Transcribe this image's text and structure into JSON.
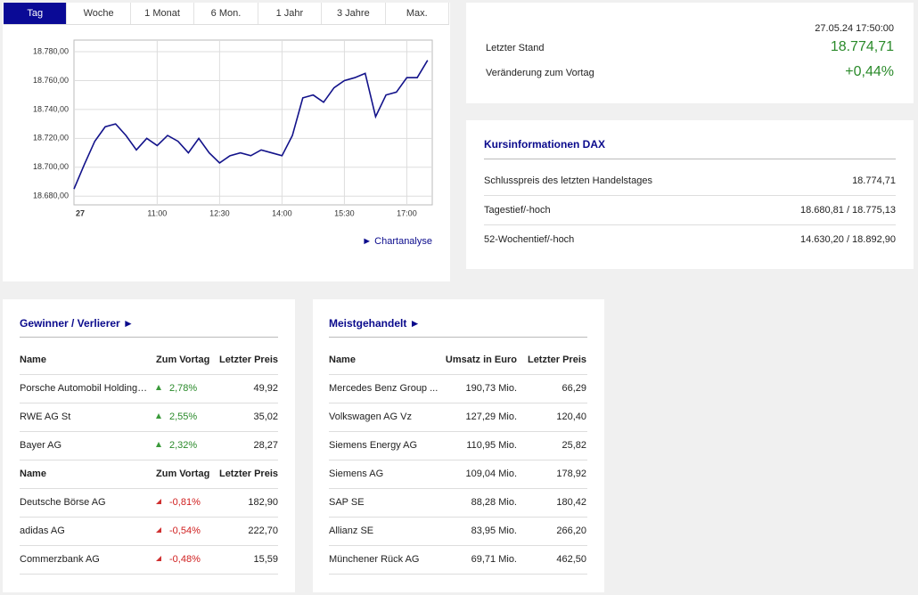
{
  "tabs": {
    "items": [
      "Tag",
      "Woche",
      "1 Monat",
      "6 Mon.",
      "1 Jahr",
      "3 Jahre",
      "Max."
    ],
    "selected": 0
  },
  "chart_data": {
    "type": "line",
    "color": "#12128a",
    "grid": true,
    "categories": [
      "27",
      null,
      null,
      null,
      null,
      null,
      null,
      null,
      "11:00",
      null,
      null,
      null,
      null,
      null,
      "12:30",
      null,
      null,
      null,
      null,
      null,
      "14:00",
      null,
      null,
      null,
      null,
      null,
      "15:30",
      null,
      null,
      null,
      null,
      null,
      "17:00",
      null,
      null
    ],
    "values": [
      18685,
      18702,
      18718,
      18728,
      18730,
      18722,
      18712,
      18720,
      18715,
      18722,
      18718,
      18710,
      18720,
      18710,
      18703,
      18708,
      18710,
      18708,
      18712,
      18710,
      18708,
      18722,
      18748,
      18750,
      18745,
      18755,
      18760,
      18762,
      18765,
      18735,
      18750,
      18752,
      18762,
      18762,
      18774
    ],
    "ylim": [
      18674,
      18788
    ],
    "yticks": [
      {
        "value": 18680,
        "label": "18.680,00"
      },
      {
        "value": 18700,
        "label": "18.700,00"
      },
      {
        "value": 18720,
        "label": "18.720,00"
      },
      {
        "value": 18740,
        "label": "18.740,00"
      },
      {
        "value": 18760,
        "label": "18.760,00"
      },
      {
        "value": 18780,
        "label": "18.780,00"
      }
    ],
    "link": "► Chartanalyse"
  },
  "quote": {
    "timestamp": "27.05.24 17:50:00",
    "rows": [
      {
        "label": "Letzter Stand",
        "value": "18.774,71"
      },
      {
        "label": "Veränderung zum Vortag",
        "value": "+0,44%"
      }
    ]
  },
  "kursinfo": {
    "title": "Kursinformationen DAX",
    "rows": [
      [
        "Schlusspreis des letzten Handelstages",
        "18.774,71"
      ],
      [
        "Tagestief/-hoch",
        "18.680,81 / 18.775,13"
      ],
      [
        "52-Wochentief/-hoch",
        "14.630,20 / 18.892,90"
      ]
    ]
  },
  "movers": {
    "title": "Gewinner / Verlierer ►",
    "groups": [
      {
        "header": [
          "Name",
          "Zum Vortag",
          "Letzter Preis"
        ],
        "rows": [
          [
            "Porsche Automobil Holding…",
            "2,78%",
            "49,92"
          ],
          [
            "RWE AG St",
            "2,55%",
            "35,02"
          ],
          [
            "Bayer AG",
            "2,32%",
            "28,27"
          ]
        ]
      },
      {
        "header": [
          "Name",
          "Zum Vortag",
          "Letzter Preis"
        ],
        "rows": [
          [
            "Deutsche Börse AG",
            "-0,81%",
            "182,90"
          ],
          [
            "adidas AG",
            "-0,54%",
            "222,70"
          ],
          [
            "Commerzbank AG",
            "-0,48%",
            "15,59"
          ]
        ]
      }
    ]
  },
  "active": {
    "title": "Meistgehandelt ►",
    "header": [
      "Name",
      "Umsatz in Euro",
      "Letzter Preis"
    ],
    "rows": [
      [
        "Mercedes Benz Group ...",
        "190,73 Mio.",
        "66,29"
      ],
      [
        "Volkswagen AG Vz",
        "127,29 Mio.",
        "120,40"
      ],
      [
        "Siemens Energy AG",
        "110,95 Mio.",
        "25,82"
      ],
      [
        "Siemens AG",
        "109,04 Mio.",
        "178,92"
      ],
      [
        "SAP SE",
        "88,28 Mio.",
        "180,42"
      ],
      [
        "Allianz SE",
        "83,95 Mio.",
        "266,20"
      ],
      [
        "Münchener Rück AG",
        "69,71 Mio.",
        "462,50"
      ]
    ]
  }
}
